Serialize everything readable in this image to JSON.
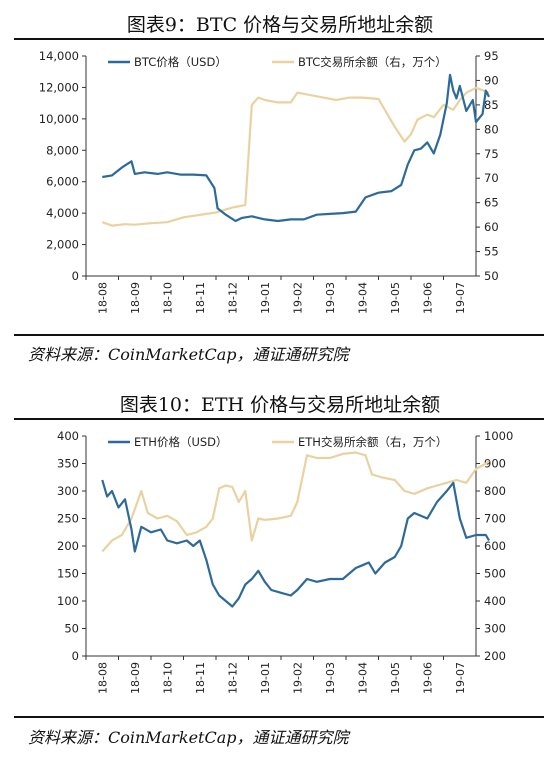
{
  "figures": [
    {
      "title": "图表9：BTC 价格与交易所地址余额",
      "source": "资料来源：CoinMarketCap，通证通研究院"
    },
    {
      "title": "图表10：ETH 价格与交易所地址余额",
      "source": "资料来源：CoinMarketCap，通证通研究院"
    }
  ],
  "chart_data": [
    {
      "type": "line",
      "categories": [
        "18-08",
        "18-09",
        "18-10",
        "18-11",
        "18-12",
        "19-01",
        "19-02",
        "19-03",
        "19-04",
        "19-05",
        "19-06",
        "19-07"
      ],
      "left_axis": {
        "ylim": [
          0,
          14000
        ],
        "ticks": [
          0,
          2000,
          4000,
          6000,
          8000,
          10000,
          12000,
          14000
        ],
        "tick_labels": [
          "0",
          "2,000",
          "4,000",
          "6,000",
          "8,000",
          "10,000",
          "12,000",
          "14,000"
        ]
      },
      "right_axis": {
        "ylim": [
          50,
          95
        ],
        "ticks": [
          50,
          55,
          60,
          65,
          70,
          75,
          80,
          85,
          90,
          95
        ],
        "tick_labels": [
          "50",
          "55",
          "60",
          "65",
          "70",
          "75",
          "80",
          "85",
          "90",
          "95"
        ]
      },
      "grid": false,
      "legend_position": "top",
      "series": [
        {
          "name": "BTC价格（USD）",
          "axis": "left",
          "color": "#2e6a99",
          "points": [
            [
              0,
              6300
            ],
            [
              0.3,
              6400
            ],
            [
              0.6,
              6900
            ],
            [
              0.9,
              7300
            ],
            [
              1.0,
              6500
            ],
            [
              1.3,
              6600
            ],
            [
              1.7,
              6500
            ],
            [
              2.0,
              6600
            ],
            [
              2.4,
              6450
            ],
            [
              2.8,
              6450
            ],
            [
              3.2,
              6400
            ],
            [
              3.45,
              5600
            ],
            [
              3.55,
              4300
            ],
            [
              3.8,
              3900
            ],
            [
              4.1,
              3500
            ],
            [
              4.3,
              3700
            ],
            [
              4.6,
              3800
            ],
            [
              5.0,
              3600
            ],
            [
              5.4,
              3500
            ],
            [
              5.8,
              3600
            ],
            [
              6.2,
              3600
            ],
            [
              6.6,
              3900
            ],
            [
              7.0,
              3950
            ],
            [
              7.4,
              4000
            ],
            [
              7.8,
              4100
            ],
            [
              8.1,
              5000
            ],
            [
              8.5,
              5300
            ],
            [
              8.9,
              5400
            ],
            [
              9.2,
              5800
            ],
            [
              9.4,
              7100
            ],
            [
              9.6,
              8000
            ],
            [
              9.8,
              8100
            ],
            [
              10.0,
              8500
            ],
            [
              10.2,
              7800
            ],
            [
              10.4,
              9000
            ],
            [
              10.6,
              11000
            ],
            [
              10.7,
              12800
            ],
            [
              10.8,
              11800
            ],
            [
              10.9,
              11300
            ],
            [
              11.0,
              12100
            ],
            [
              11.2,
              10500
            ],
            [
              11.4,
              11200
            ],
            [
              11.5,
              9800
            ],
            [
              11.7,
              10300
            ],
            [
              11.8,
              11800
            ],
            [
              11.9,
              11400
            ]
          ]
        },
        {
          "name": "BTC交易所余额（右，万个）",
          "axis": "right",
          "color": "#e9d2a0",
          "points": [
            [
              0,
              61.0
            ],
            [
              0.3,
              60.3
            ],
            [
              0.7,
              60.6
            ],
            [
              1.0,
              60.5
            ],
            [
              1.5,
              60.8
            ],
            [
              2.0,
              61.0
            ],
            [
              2.5,
              62.0
            ],
            [
              3.0,
              62.5
            ],
            [
              3.5,
              63.0
            ],
            [
              4.0,
              64.0
            ],
            [
              4.4,
              64.5
            ],
            [
              4.6,
              85.0
            ],
            [
              4.8,
              86.5
            ],
            [
              5.0,
              86.0
            ],
            [
              5.4,
              85.5
            ],
            [
              5.8,
              85.5
            ],
            [
              6.0,
              87.5
            ],
            [
              6.4,
              87.0
            ],
            [
              6.8,
              86.5
            ],
            [
              7.2,
              86.0
            ],
            [
              7.6,
              86.5
            ],
            [
              8.0,
              86.5
            ],
            [
              8.5,
              86.2
            ],
            [
              9.0,
              80.5
            ],
            [
              9.3,
              77.5
            ],
            [
              9.5,
              79.0
            ],
            [
              9.7,
              82.0
            ],
            [
              10.0,
              83.0
            ],
            [
              10.2,
              82.5
            ],
            [
              10.5,
              85.0
            ],
            [
              10.8,
              84.0
            ],
            [
              11.0,
              86.0
            ],
            [
              11.2,
              87.5
            ],
            [
              11.5,
              88.5
            ],
            [
              11.7,
              88.0
            ],
            [
              11.9,
              87.5
            ]
          ]
        }
      ]
    },
    {
      "type": "line",
      "categories": [
        "18-08",
        "18-09",
        "18-10",
        "18-11",
        "18-12",
        "19-01",
        "19-02",
        "19-03",
        "19-04",
        "19-05",
        "19-06",
        "19-07"
      ],
      "left_axis": {
        "ylim": [
          0,
          400
        ],
        "ticks": [
          0,
          50,
          100,
          150,
          200,
          250,
          300,
          350,
          400
        ],
        "tick_labels": [
          "0",
          "50",
          "100",
          "150",
          "200",
          "250",
          "300",
          "350",
          "400"
        ]
      },
      "right_axis": {
        "ylim": [
          200,
          1000
        ],
        "ticks": [
          200,
          300,
          400,
          500,
          600,
          700,
          800,
          900,
          1000
        ],
        "tick_labels": [
          "200",
          "300",
          "400",
          "500",
          "600",
          "700",
          "800",
          "900",
          "1000"
        ]
      },
      "grid": false,
      "legend_position": "top",
      "series": [
        {
          "name": "ETH价格（USD）",
          "axis": "left",
          "color": "#2e6a99",
          "points": [
            [
              0,
              320
            ],
            [
              0.15,
              290
            ],
            [
              0.3,
              300
            ],
            [
              0.5,
              270
            ],
            [
              0.7,
              285
            ],
            [
              0.9,
              230
            ],
            [
              1.0,
              190
            ],
            [
              1.2,
              235
            ],
            [
              1.5,
              225
            ],
            [
              1.8,
              230
            ],
            [
              2.0,
              210
            ],
            [
              2.3,
              205
            ],
            [
              2.6,
              210
            ],
            [
              2.8,
              200
            ],
            [
              3.0,
              210
            ],
            [
              3.2,
              175
            ],
            [
              3.4,
              130
            ],
            [
              3.6,
              110
            ],
            [
              3.8,
              100
            ],
            [
              4.0,
              90
            ],
            [
              4.2,
              105
            ],
            [
              4.4,
              130
            ],
            [
              4.6,
              140
            ],
            [
              4.8,
              155
            ],
            [
              5.0,
              135
            ],
            [
              5.2,
              120
            ],
            [
              5.5,
              115
            ],
            [
              5.8,
              110
            ],
            [
              6.0,
              120
            ],
            [
              6.3,
              140
            ],
            [
              6.6,
              135
            ],
            [
              7.0,
              140
            ],
            [
              7.4,
              140
            ],
            [
              7.8,
              160
            ],
            [
              8.0,
              165
            ],
            [
              8.2,
              170
            ],
            [
              8.4,
              150
            ],
            [
              8.7,
              170
            ],
            [
              9.0,
              180
            ],
            [
              9.2,
              200
            ],
            [
              9.4,
              250
            ],
            [
              9.6,
              260
            ],
            [
              9.8,
              255
            ],
            [
              10.0,
              250
            ],
            [
              10.3,
              280
            ],
            [
              10.6,
              300
            ],
            [
              10.8,
              315
            ],
            [
              11.0,
              250
            ],
            [
              11.2,
              215
            ],
            [
              11.5,
              220
            ],
            [
              11.8,
              220
            ],
            [
              11.9,
              210
            ]
          ]
        },
        {
          "name": "ETH交易所余额（右，万个）",
          "axis": "right",
          "color": "#e9d2a0",
          "points": [
            [
              0,
              580
            ],
            [
              0.3,
              620
            ],
            [
              0.6,
              640
            ],
            [
              0.9,
              700
            ],
            [
              1.2,
              800
            ],
            [
              1.4,
              720
            ],
            [
              1.7,
              700
            ],
            [
              2.0,
              710
            ],
            [
              2.3,
              690
            ],
            [
              2.6,
              640
            ],
            [
              2.9,
              650
            ],
            [
              3.2,
              670
            ],
            [
              3.4,
              700
            ],
            [
              3.6,
              810
            ],
            [
              3.8,
              820
            ],
            [
              4.0,
              815
            ],
            [
              4.2,
              760
            ],
            [
              4.4,
              800
            ],
            [
              4.6,
              620
            ],
            [
              4.8,
              700
            ],
            [
              5.0,
              695
            ],
            [
              5.4,
              700
            ],
            [
              5.8,
              710
            ],
            [
              6.0,
              760
            ],
            [
              6.3,
              930
            ],
            [
              6.6,
              920
            ],
            [
              7.0,
              920
            ],
            [
              7.4,
              935
            ],
            [
              7.8,
              940
            ],
            [
              8.1,
              930
            ],
            [
              8.3,
              860
            ],
            [
              8.6,
              850
            ],
            [
              9.0,
              840
            ],
            [
              9.3,
              800
            ],
            [
              9.6,
              790
            ],
            [
              10.0,
              810
            ],
            [
              10.3,
              820
            ],
            [
              10.6,
              830
            ],
            [
              10.9,
              840
            ],
            [
              11.2,
              830
            ],
            [
              11.5,
              880
            ],
            [
              11.8,
              900
            ],
            [
              11.9,
              910
            ]
          ]
        }
      ]
    }
  ]
}
